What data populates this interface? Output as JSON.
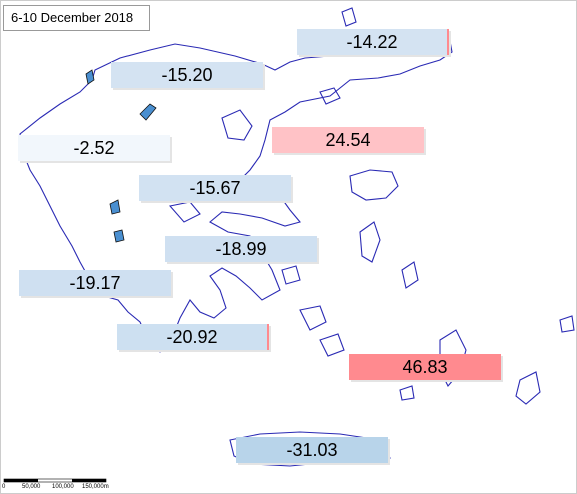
{
  "title": "6-10 December 2018",
  "regions": [
    {
      "label": "-14.22",
      "color": "#d4e3f2"
    },
    {
      "label": "-15.20",
      "color": "#d4e3f2"
    },
    {
      "label": "-2.52",
      "color": "#f2f7fc"
    },
    {
      "label": "24.54",
      "color": "#ffc2c6"
    },
    {
      "label": "-15.67",
      "color": "#d2e2f2"
    },
    {
      "label": "-18.99",
      "color": "#cfe0f1"
    },
    {
      "label": "-19.17",
      "color": "#cfe0f1"
    },
    {
      "label": "-20.92",
      "color": "#cde0f1"
    },
    {
      "label": "46.83",
      "color": "#ff8a8f"
    },
    {
      "label": "-31.03",
      "color": "#b8d4ea"
    }
  ],
  "scale_bar": {
    "labels": [
      "0",
      "50,000",
      "100,000",
      "150,000m"
    ]
  }
}
